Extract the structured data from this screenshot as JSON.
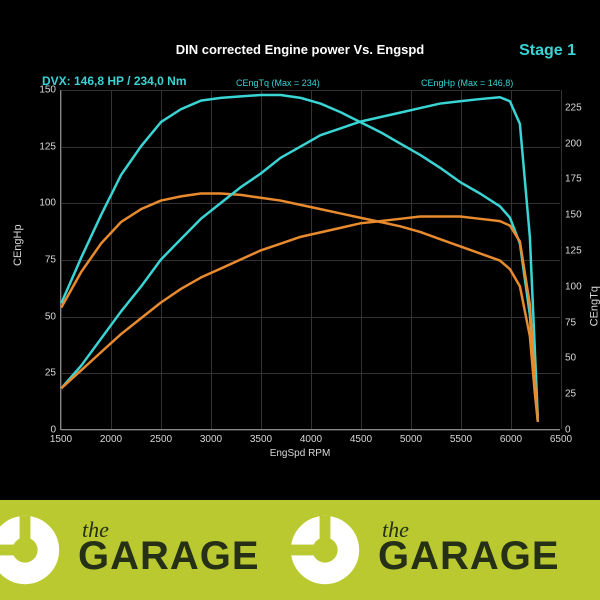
{
  "chart": {
    "type": "line",
    "title": "DIN corrected Engine power Vs. Engspd",
    "stage_label": "Stage 1",
    "dvx_label": "DVX:  146,8 HP / 234,0 Nm",
    "background_color": "#000000",
    "grid_color": "#333333",
    "text_color": "#d8d8d8",
    "accent_color": "#3ad4d4",
    "x_axis": {
      "label": "EngSpd RPM",
      "min": 1500,
      "max": 6500,
      "ticks": [
        1500,
        2000,
        2500,
        3000,
        3500,
        4000,
        4500,
        5000,
        5500,
        6000,
        6500
      ]
    },
    "y_axis_left": {
      "label": "CEngHp",
      "min": 0,
      "max": 150,
      "ticks": [
        0,
        25,
        50,
        75,
        100,
        125,
        150
      ]
    },
    "y_axis_right": {
      "label": "CEngTq",
      "min": 0,
      "max": 237.5,
      "ticks": [
        0,
        25,
        50,
        75,
        100,
        125,
        150,
        175,
        200,
        225
      ]
    },
    "curve_labels": {
      "torque": "CEngTq (Max = 234)",
      "hp": "CEngHp (Max = 146,8)"
    },
    "series": [
      {
        "name": "torque_stage1",
        "color": "#3ad4d4",
        "width": 2.5,
        "axis": "right",
        "points": [
          [
            1500,
            88
          ],
          [
            1700,
            120
          ],
          [
            1900,
            150
          ],
          [
            2100,
            178
          ],
          [
            2300,
            198
          ],
          [
            2500,
            215
          ],
          [
            2700,
            224
          ],
          [
            2900,
            230
          ],
          [
            3100,
            232
          ],
          [
            3300,
            233
          ],
          [
            3500,
            234
          ],
          [
            3700,
            234
          ],
          [
            3900,
            232
          ],
          [
            4100,
            228
          ],
          [
            4300,
            222
          ],
          [
            4500,
            215
          ],
          [
            4700,
            208
          ],
          [
            4900,
            200
          ],
          [
            5100,
            192
          ],
          [
            5300,
            183
          ],
          [
            5500,
            173
          ],
          [
            5700,
            165
          ],
          [
            5900,
            156
          ],
          [
            6000,
            148
          ],
          [
            6100,
            130
          ],
          [
            6200,
            80
          ],
          [
            6250,
            30
          ],
          [
            6280,
            5
          ]
        ]
      },
      {
        "name": "torque_stock",
        "color": "#e88a2e",
        "width": 2.5,
        "axis": "right",
        "points": [
          [
            1500,
            85
          ],
          [
            1700,
            110
          ],
          [
            1900,
            130
          ],
          [
            2100,
            145
          ],
          [
            2300,
            154
          ],
          [
            2500,
            160
          ],
          [
            2700,
            163
          ],
          [
            2900,
            165
          ],
          [
            3100,
            165
          ],
          [
            3300,
            164
          ],
          [
            3500,
            162
          ],
          [
            3700,
            160
          ],
          [
            3900,
            157
          ],
          [
            4100,
            154
          ],
          [
            4300,
            151
          ],
          [
            4500,
            148
          ],
          [
            4700,
            145
          ],
          [
            4900,
            142
          ],
          [
            5100,
            138
          ],
          [
            5300,
            133
          ],
          [
            5500,
            128
          ],
          [
            5700,
            123
          ],
          [
            5900,
            118
          ],
          [
            6000,
            112
          ],
          [
            6100,
            100
          ],
          [
            6200,
            65
          ],
          [
            6250,
            25
          ],
          [
            6280,
            5
          ]
        ]
      },
      {
        "name": "hp_stage1",
        "color": "#3ad4d4",
        "width": 2.5,
        "axis": "left",
        "points": [
          [
            1500,
            18
          ],
          [
            1700,
            28
          ],
          [
            1900,
            40
          ],
          [
            2100,
            52
          ],
          [
            2300,
            63
          ],
          [
            2500,
            75
          ],
          [
            2700,
            84
          ],
          [
            2900,
            93
          ],
          [
            3100,
            100
          ],
          [
            3300,
            107
          ],
          [
            3500,
            113
          ],
          [
            3700,
            120
          ],
          [
            3900,
            125
          ],
          [
            4100,
            130
          ],
          [
            4300,
            133
          ],
          [
            4500,
            136
          ],
          [
            4700,
            138
          ],
          [
            4900,
            140
          ],
          [
            5100,
            142
          ],
          [
            5300,
            144
          ],
          [
            5500,
            145
          ],
          [
            5700,
            146
          ],
          [
            5900,
            146.8
          ],
          [
            6000,
            145
          ],
          [
            6100,
            135
          ],
          [
            6200,
            85
          ],
          [
            6250,
            35
          ],
          [
            6280,
            5
          ]
        ]
      },
      {
        "name": "hp_stock",
        "color": "#e88a2e",
        "width": 2.5,
        "axis": "left",
        "points": [
          [
            1500,
            18
          ],
          [
            1700,
            26
          ],
          [
            1900,
            34
          ],
          [
            2100,
            42
          ],
          [
            2300,
            49
          ],
          [
            2500,
            56
          ],
          [
            2700,
            62
          ],
          [
            2900,
            67
          ],
          [
            3100,
            71
          ],
          [
            3300,
            75
          ],
          [
            3500,
            79
          ],
          [
            3700,
            82
          ],
          [
            3900,
            85
          ],
          [
            4100,
            87
          ],
          [
            4300,
            89
          ],
          [
            4500,
            91
          ],
          [
            4700,
            92
          ],
          [
            4900,
            93
          ],
          [
            5100,
            94
          ],
          [
            5300,
            94
          ],
          [
            5500,
            94
          ],
          [
            5700,
            93
          ],
          [
            5900,
            92
          ],
          [
            6000,
            90
          ],
          [
            6100,
            83
          ],
          [
            6200,
            55
          ],
          [
            6250,
            22
          ],
          [
            6280,
            5
          ]
        ]
      }
    ]
  },
  "banner": {
    "background_color": "#b9c92f",
    "text_color": "#253017",
    "the_text": "the",
    "garage_text": "GARAGE"
  }
}
